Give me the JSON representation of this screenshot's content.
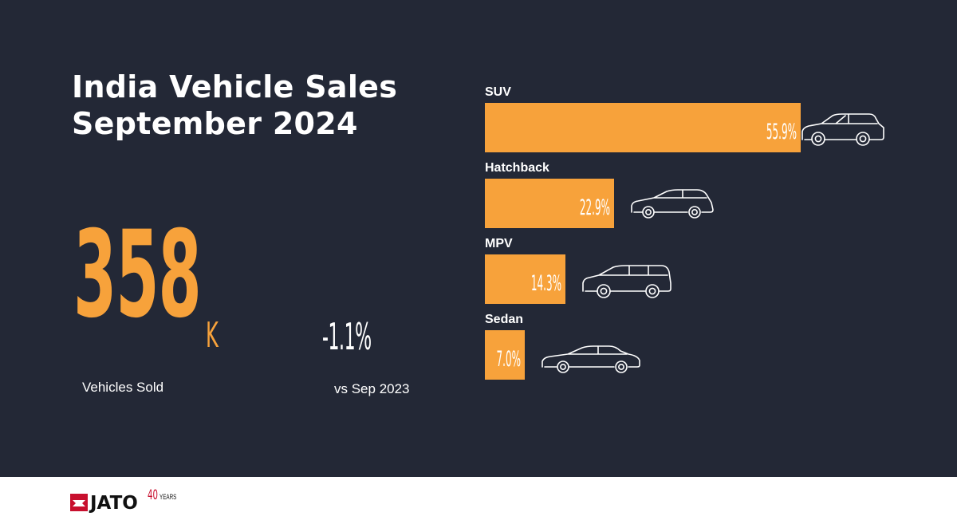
{
  "title": {
    "line1": "India Vehicle Sales",
    "line2": "September 2024"
  },
  "headline": {
    "value": "358",
    "unit": "K",
    "caption": "Vehicles Sold"
  },
  "change": {
    "value": "-1.1%",
    "caption": "vs Sep 2023"
  },
  "colors": {
    "background": "#232836",
    "accent": "#f7a23b",
    "text": "#ffffff",
    "brand": "#c8102e"
  },
  "chart_data": {
    "type": "bar",
    "orientation": "horizontal",
    "categories": [
      "SUV",
      "Hatchback",
      "MPV",
      "Sedan"
    ],
    "values": [
      55.9,
      22.9,
      14.3,
      7.0
    ],
    "value_labels": [
      "55.9%",
      "22.9%",
      "14.3%",
      "7.0%"
    ],
    "icons": [
      "suv-icon",
      "hatchback-icon",
      "mpv-icon",
      "sedan-icon"
    ],
    "unit": "%",
    "title": "",
    "xlabel": "",
    "ylabel": "",
    "xlim": [
      0,
      55.9
    ],
    "grid": false,
    "legend": "none"
  },
  "footer": {
    "brand": "JATO",
    "anniversary_number": "40",
    "anniversary_word": "YEARS"
  }
}
